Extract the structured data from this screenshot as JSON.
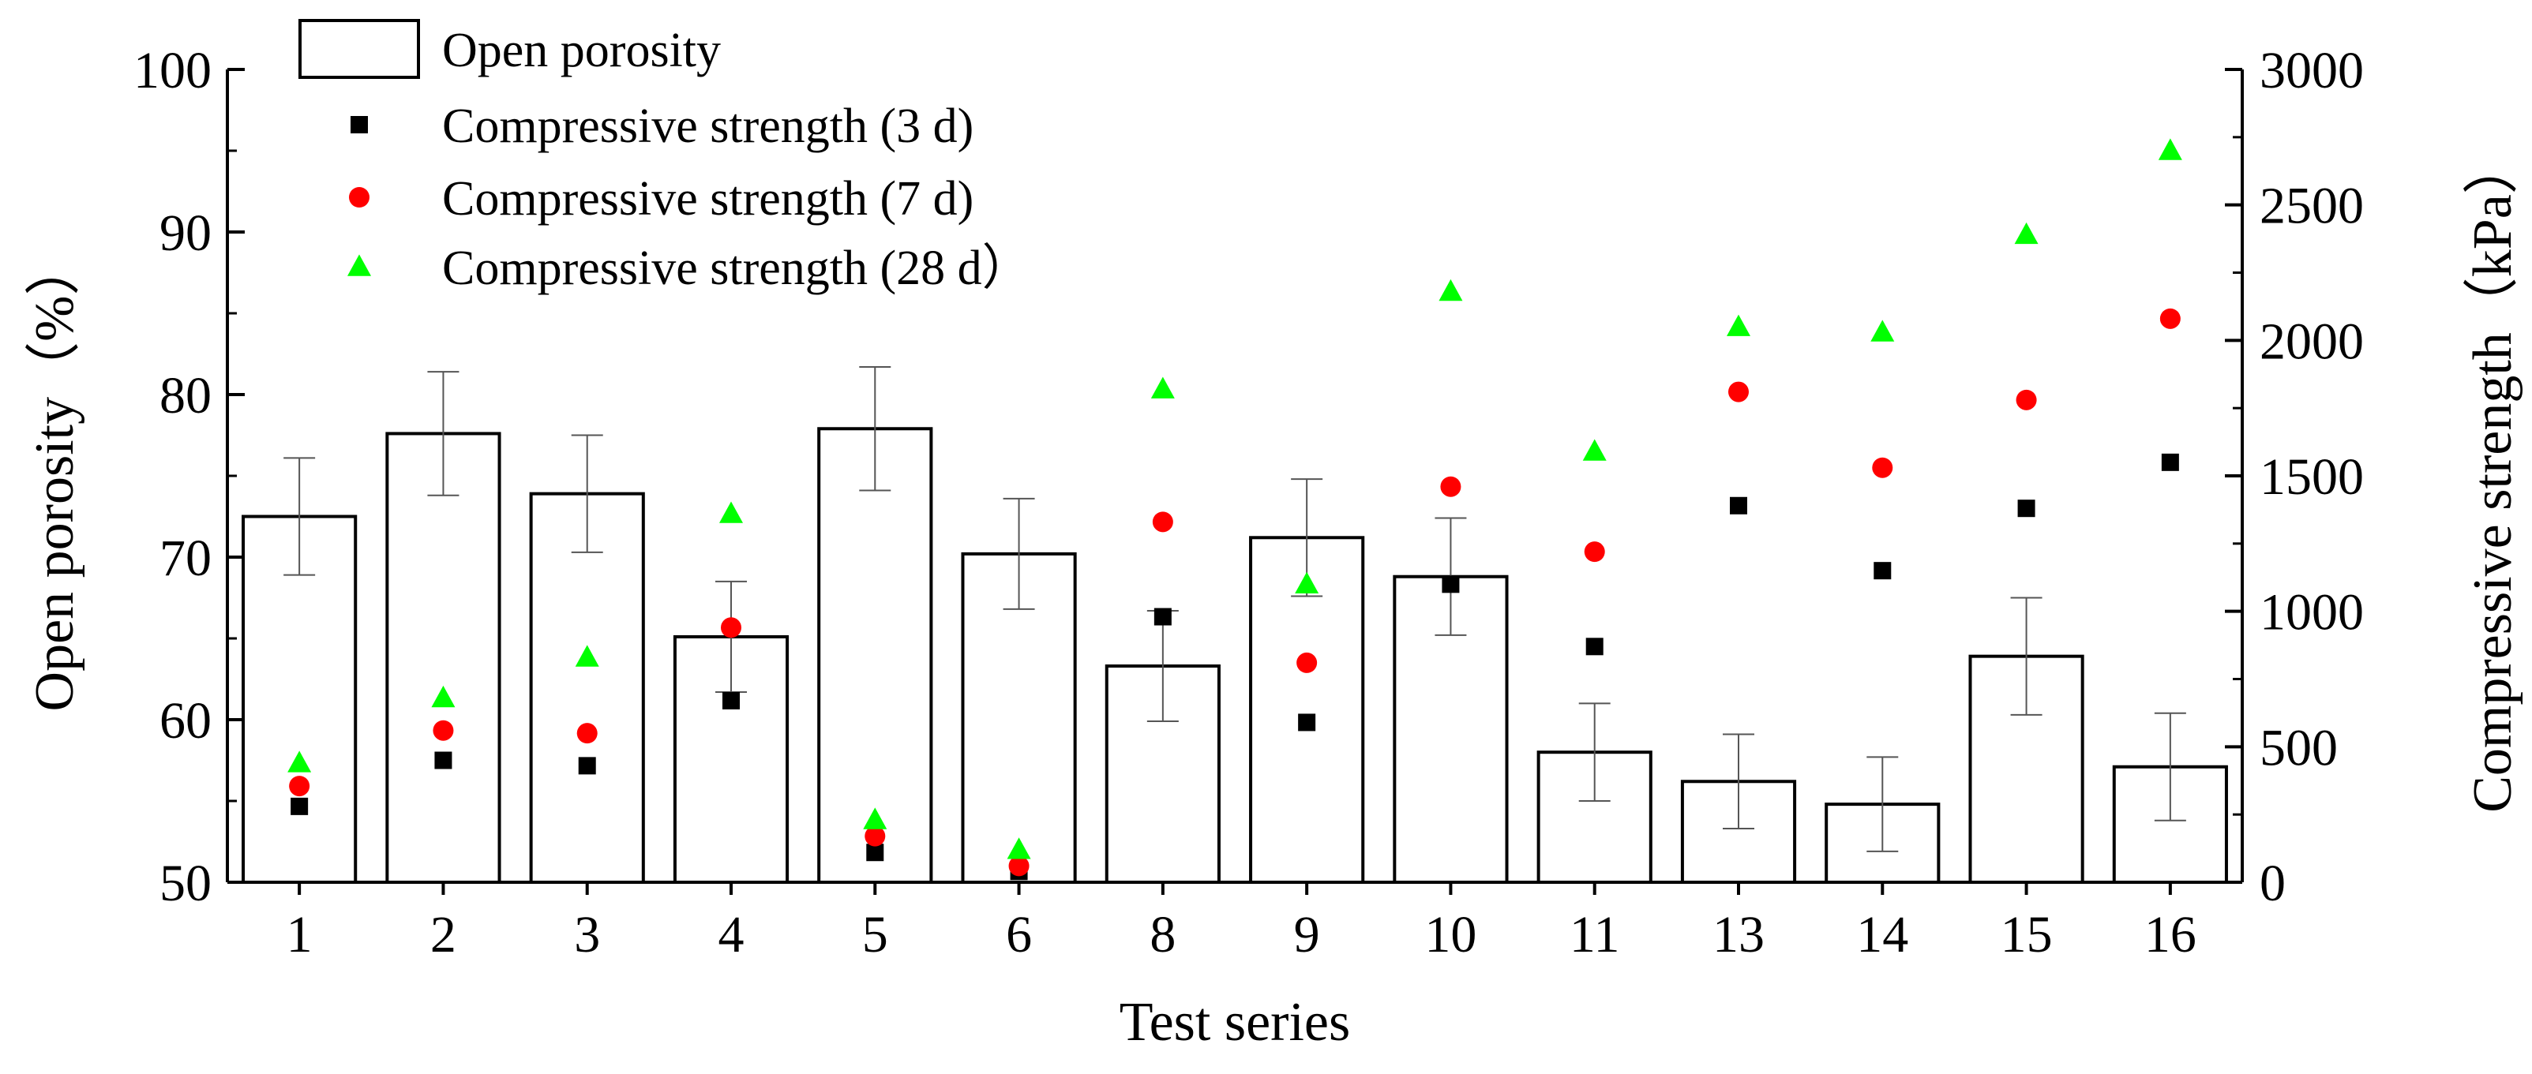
{
  "chart_data": {
    "type": "bar",
    "categories": [
      "1",
      "2",
      "3",
      "4",
      "5",
      "6",
      "8",
      "9",
      "10",
      "11",
      "13",
      "14",
      "15",
      "16"
    ],
    "xlabel": "Test series",
    "ylabel": "Open porosity（%）",
    "ylabel_right": "Compressive strength（kPa）",
    "ylim": [
      50,
      100
    ],
    "ylim_right": [
      0,
      3000
    ],
    "yticks": [
      50,
      60,
      70,
      80,
      90,
      100
    ],
    "yticks_right": [
      0,
      500,
      1000,
      1500,
      2000,
      2500,
      3000
    ],
    "bars": {
      "name": "Open porosity",
      "values": [
        72.5,
        77.6,
        73.9,
        65.1,
        77.9,
        70.2,
        63.3,
        71.2,
        68.8,
        58.0,
        56.2,
        54.8,
        63.9,
        57.1
      ],
      "errors": [
        3.6,
        3.8,
        3.6,
        3.4,
        3.8,
        3.4,
        3.4,
        3.6,
        3.6,
        3.0,
        2.9,
        2.9,
        3.6,
        3.3
      ],
      "color": "#ffffff",
      "edge_color": "#000000"
    },
    "series": [
      {
        "name": "Compressive strength (3 d)",
        "axis": "right",
        "marker": "square",
        "color": "#000000",
        "values": [
          280,
          450,
          430,
          670,
          110,
          40,
          980,
          590,
          1100,
          870,
          1390,
          1150,
          1380,
          1550
        ]
      },
      {
        "name": "Compressive strength (7 d)",
        "axis": "right",
        "marker": "circle",
        "color": "#ff0000",
        "values": [
          355,
          560,
          550,
          940,
          170,
          60,
          1330,
          810,
          1460,
          1220,
          1810,
          1530,
          1780,
          2080
        ]
      },
      {
        "name": "Compressive strength (28 d)",
        "axis": "right",
        "marker": "triangle",
        "color": "#00ff00",
        "values": [
          440,
          680,
          830,
          1360,
          230,
          120,
          1820,
          1100,
          2180,
          1590,
          2050,
          2030,
          2390,
          2700
        ]
      }
    ],
    "legend": {
      "position": "top-left",
      "entries": [
        "Open porosity",
        "Compressive strength (3 d)",
        "Compressive strength (7 d)",
        "Compressive strength (28 d）"
      ]
    }
  }
}
